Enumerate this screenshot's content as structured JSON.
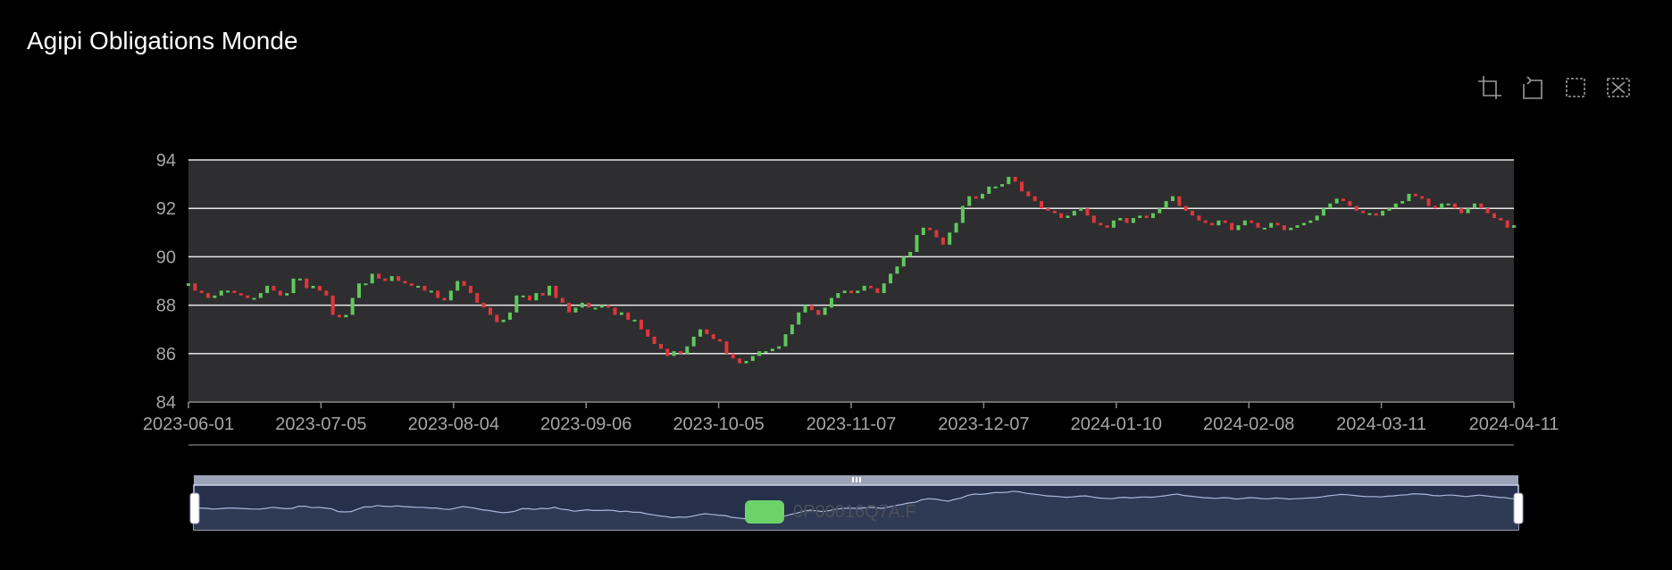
{
  "page": {
    "title": "Agipi Obligations Monde"
  },
  "toolbox": {
    "items": [
      {
        "name": "zoom-icon"
      },
      {
        "name": "zoom-reset-icon"
      },
      {
        "name": "restore-icon"
      },
      {
        "name": "clear-icon"
      }
    ],
    "color": "#9a9aa0"
  },
  "legend": {
    "label": "0P00016Q7A.F",
    "swatch_color": "#6cd26a",
    "label_color": "#4a4f5c"
  },
  "colors": {
    "plot_bg": "#2e2e30",
    "grid": "#e8e8e8",
    "axis_text": "#a6a6a6",
    "up": "#5ec95b",
    "down": "#e0363a",
    "slider_bg": "#26304a",
    "slider_area": "#2f3a55",
    "slider_line": "#a9b6d8"
  },
  "chart_data": {
    "type": "candlestick",
    "title": "Agipi Obligations Monde",
    "series": [
      {
        "name": "0P00016Q7A.F"
      }
    ],
    "x_range": [
      "2023-06-01",
      "2024-04-11"
    ],
    "xticks": [
      "2023-06-01",
      "2023-07-05",
      "2023-08-04",
      "2023-09-06",
      "2023-10-05",
      "2023-11-07",
      "2023-12-07",
      "2024-01-10",
      "2024-02-08",
      "2024-03-11",
      "2024-04-11"
    ],
    "ylim": [
      84,
      94
    ],
    "yticks": [
      84,
      86,
      88,
      90,
      92,
      94
    ],
    "grid": true,
    "datazoom": {
      "start_percent": 0,
      "end_percent": 100
    },
    "close": [
      88.9,
      88.6,
      88.5,
      88.3,
      88.4,
      88.6,
      88.6,
      88.5,
      88.4,
      88.3,
      88.3,
      88.5,
      88.8,
      88.6,
      88.4,
      88.5,
      89.1,
      89.1,
      88.7,
      88.8,
      88.6,
      88.4,
      87.6,
      87.5,
      87.6,
      88.3,
      88.9,
      88.9,
      89.3,
      89.1,
      89.0,
      89.2,
      89.0,
      88.9,
      88.8,
      88.8,
      88.6,
      88.6,
      88.3,
      88.2,
      88.6,
      89.0,
      88.8,
      88.5,
      88.1,
      87.9,
      87.6,
      87.3,
      87.4,
      87.7,
      88.4,
      88.4,
      88.2,
      88.5,
      88.4,
      88.8,
      88.3,
      88.1,
      87.7,
      87.9,
      88.1,
      87.9,
      87.9,
      88.0,
      87.9,
      87.6,
      87.7,
      87.4,
      87.4,
      87.0,
      86.7,
      86.4,
      86.2,
      85.9,
      86.1,
      86.0,
      86.3,
      86.7,
      87.0,
      86.8,
      86.6,
      86.5,
      86.0,
      85.8,
      85.6,
      85.7,
      85.9,
      86.1,
      86.1,
      86.2,
      86.3,
      86.8,
      87.2,
      87.7,
      88.0,
      87.8,
      87.6,
      87.9,
      88.3,
      88.5,
      88.6,
      88.5,
      88.6,
      88.8,
      88.7,
      88.5,
      88.9,
      89.3,
      89.6,
      90.0,
      90.2,
      90.9,
      91.2,
      91.1,
      90.8,
      90.5,
      91.0,
      91.4,
      92.1,
      92.5,
      92.4,
      92.6,
      92.9,
      92.9,
      93.0,
      93.3,
      93.1,
      92.7,
      92.5,
      92.3,
      92.0,
      91.9,
      91.8,
      91.6,
      91.7,
      91.9,
      92.0,
      91.7,
      91.4,
      91.3,
      91.2,
      91.5,
      91.6,
      91.4,
      91.6,
      91.7,
      91.6,
      91.8,
      92.0,
      92.3,
      92.5,
      92.1,
      91.9,
      91.7,
      91.5,
      91.4,
      91.3,
      91.5,
      91.4,
      91.1,
      91.3,
      91.5,
      91.4,
      91.2,
      91.2,
      91.4,
      91.3,
      91.1,
      91.2,
      91.3,
      91.4,
      91.5,
      91.7,
      92.0,
      92.2,
      92.4,
      92.3,
      92.1,
      91.9,
      91.8,
      91.8,
      91.7,
      91.9,
      92.0,
      92.2,
      92.3,
      92.6,
      92.5,
      92.4,
      92.1,
      92.0,
      92.2,
      92.2,
      92.0,
      91.8,
      92.0,
      92.2,
      92.0,
      91.8,
      91.6,
      91.5,
      91.2,
      91.3
    ]
  }
}
